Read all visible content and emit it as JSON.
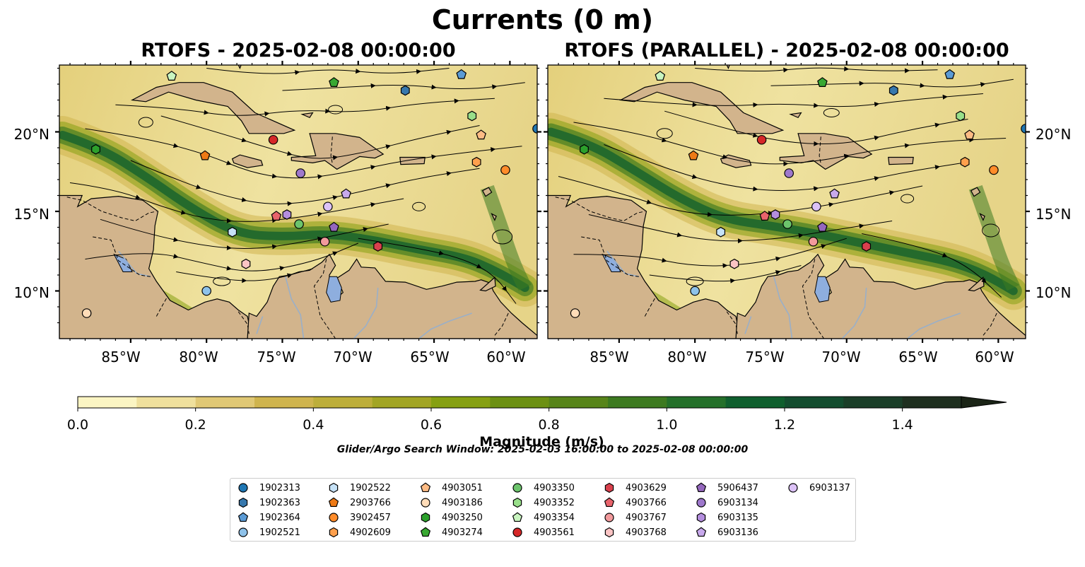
{
  "figure": {
    "title": "Currents (0 m)",
    "panels": [
      {
        "title": "RTOFS - 2025-02-08 00:00:00"
      },
      {
        "title": "RTOFS (PARALLEL) - 2025-02-08 00:00:00"
      }
    ],
    "lat_ticks": [
      "10°N",
      "15°N",
      "20°N"
    ],
    "lon_ticks": [
      "85°W",
      "80°W",
      "75°W",
      "70°W",
      "65°W",
      "60°W"
    ]
  },
  "map_extent": {
    "lon_min": -89.7,
    "lon_max": -58.2,
    "lat_min": 7.0,
    "lat_max": 24.2
  },
  "colorbar": {
    "label": "Magnitude (m/s)",
    "tick_labels": [
      "0.0",
      "0.2",
      "0.4",
      "0.6",
      "0.8",
      "1.0",
      "1.2",
      "1.4"
    ],
    "range": [
      0.0,
      1.5
    ],
    "extend": "max",
    "colors": [
      "#fbf5c3",
      "#efe09d",
      "#e0c875",
      "#cfb44e",
      "#bdae3a",
      "#a2a524",
      "#86a012",
      "#6c9012",
      "#578419",
      "#3d7a20",
      "#24702a",
      "#0f5f2e",
      "#134d2f",
      "#1a3e28",
      "#1e2f1f",
      "#1a2416"
    ]
  },
  "search_window": "Glider/Argo Search Window: 2025-02-03 16:00:00 to 2025-02-08 00:00:00",
  "legend": [
    {
      "id": "1902313",
      "marker": "circle",
      "color": "#1f77b4"
    },
    {
      "id": "1902363",
      "marker": "hexagon",
      "color": "#3778ad"
    },
    {
      "id": "1902364",
      "marker": "pentagon",
      "color": "#5b9bd5"
    },
    {
      "id": "1902521",
      "marker": "circle",
      "color": "#8ec2ea"
    },
    {
      "id": "1902522",
      "marker": "hexagon",
      "color": "#c6e2f7"
    },
    {
      "id": "2903766",
      "marker": "pentagon",
      "color": "#ee7a16"
    },
    {
      "id": "3902457",
      "marker": "circle",
      "color": "#ff8c2a"
    },
    {
      "id": "4902609",
      "marker": "hexagon",
      "color": "#ffa04d"
    },
    {
      "id": "4903051",
      "marker": "pentagon",
      "color": "#fdbb84"
    },
    {
      "id": "4903186",
      "marker": "circle",
      "color": "#ffdcb8"
    },
    {
      "id": "4903250",
      "marker": "hexagon",
      "color": "#2ca02c"
    },
    {
      "id": "4903274",
      "marker": "pentagon",
      "color": "#38a832"
    },
    {
      "id": "4903350",
      "marker": "circle",
      "color": "#6cc46c"
    },
    {
      "id": "4903352",
      "marker": "hexagon",
      "color": "#98df8a"
    },
    {
      "id": "4903354",
      "marker": "pentagon",
      "color": "#c9f5c0"
    },
    {
      "id": "4903561",
      "marker": "circle",
      "color": "#d62728"
    },
    {
      "id": "4903629",
      "marker": "hexagon",
      "color": "#d9404d"
    },
    {
      "id": "4903766",
      "marker": "pentagon",
      "color": "#e8636b"
    },
    {
      "id": "4903767",
      "marker": "circle",
      "color": "#f29a9c"
    },
    {
      "id": "4903768",
      "marker": "hexagon",
      "color": "#fbc4c4"
    },
    {
      "id": "5906437",
      "marker": "pentagon",
      "color": "#9467bd"
    },
    {
      "id": "6903134",
      "marker": "circle",
      "color": "#9e78cc"
    },
    {
      "id": "6903135",
      "marker": "hexagon",
      "color": "#b48ede"
    },
    {
      "id": "6903136",
      "marker": "pentagon",
      "color": "#c8a9ec"
    },
    {
      "id": "6903137",
      "marker": "circle",
      "color": "#dcc2f7"
    }
  ],
  "floats": [
    {
      "id": "1902313",
      "lon": -58.2,
      "lat": 20.2
    },
    {
      "id": "1902363",
      "lon": -66.9,
      "lat": 22.6
    },
    {
      "id": "1902364",
      "lon": -63.2,
      "lat": 23.6
    },
    {
      "id": "1902521",
      "lon": -80.0,
      "lat": 10.0
    },
    {
      "id": "1902522",
      "lon": -78.3,
      "lat": 13.7
    },
    {
      "id": "2903766",
      "lon": -80.1,
      "lat": 18.5
    },
    {
      "id": "3902457",
      "lon": -60.3,
      "lat": 17.6
    },
    {
      "id": "4902609",
      "lon": -62.2,
      "lat": 18.1
    },
    {
      "id": "4903051",
      "lon": -61.9,
      "lat": 19.8
    },
    {
      "id": "4903186",
      "lon": -87.9,
      "lat": 8.6
    },
    {
      "id": "4903250",
      "lon": -87.3,
      "lat": 18.9
    },
    {
      "id": "4903274",
      "lon": -71.6,
      "lat": 23.1
    },
    {
      "id": "4903350",
      "lon": -73.9,
      "lat": 14.2
    },
    {
      "id": "4903352",
      "lon": -62.5,
      "lat": 21.0
    },
    {
      "id": "4903354",
      "lon": -82.3,
      "lat": 23.5
    },
    {
      "id": "4903561",
      "lon": -75.6,
      "lat": 19.5
    },
    {
      "id": "4903629",
      "lon": -68.7,
      "lat": 12.8
    },
    {
      "id": "4903766",
      "lon": -75.4,
      "lat": 14.7
    },
    {
      "id": "4903767",
      "lon": -72.2,
      "lat": 13.1
    },
    {
      "id": "4903768",
      "lon": -77.4,
      "lat": 11.7
    },
    {
      "id": "5906437",
      "lon": -71.6,
      "lat": 14.0
    },
    {
      "id": "6903134",
      "lon": -73.8,
      "lat": 17.4
    },
    {
      "id": "6903135",
      "lon": -74.7,
      "lat": 14.8
    },
    {
      "id": "6903136",
      "lon": -70.8,
      "lat": 16.1
    },
    {
      "id": "6903137",
      "lon": -72.0,
      "lat": 15.3
    }
  ]
}
